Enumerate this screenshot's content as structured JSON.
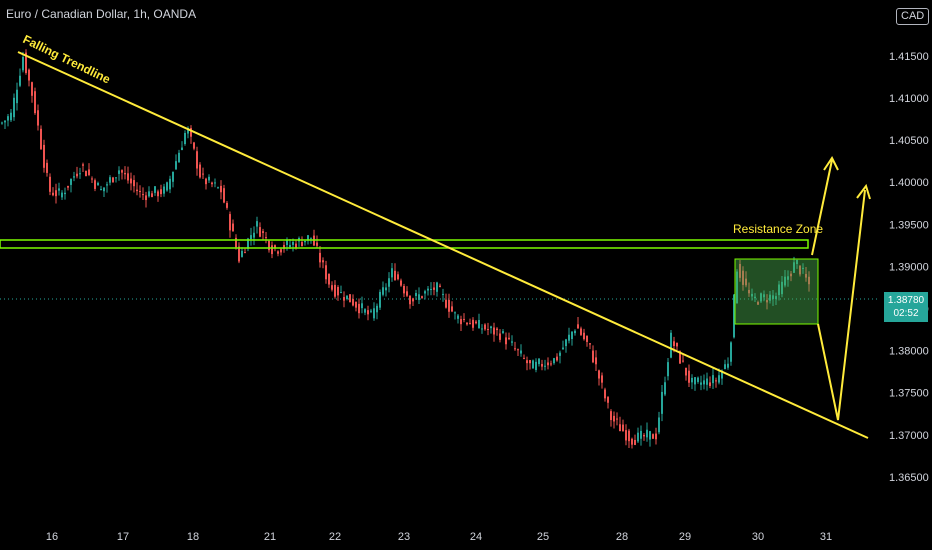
{
  "header": {
    "symbol_title": "Euro / Canadian Dollar, 1h, OANDA",
    "currency_button": "CAD"
  },
  "current_price": {
    "value": "1.38780",
    "countdown": "02:52",
    "color": "#26a69a"
  },
  "annotations": {
    "trendline_label": "Falling Trendline",
    "zone_label": "Resistance Zone",
    "trendline_color": "#ffeb3b",
    "zone_color": "#7cfc00"
  },
  "colors": {
    "up": "#26a69a",
    "down": "#ef5350",
    "axis_text": "#d1d4dc"
  },
  "chart_data": {
    "type": "candlestick",
    "title": "Euro / Canadian Dollar, 1h, OANDA",
    "y_ticks": [
      "1.41500",
      "1.41000",
      "1.40500",
      "1.40000",
      "1.39500",
      "1.39000",
      "1.38500",
      "1.38000",
      "1.37500",
      "1.37000",
      "1.36500"
    ],
    "x_ticks": [
      "16",
      "17",
      "18",
      "21",
      "22",
      "23",
      "24",
      "25",
      "28",
      "29",
      "30",
      "31"
    ],
    "ylim": [
      1.3625,
      1.4195
    ],
    "key_points": [
      {
        "label": "16",
        "close": 1.414
      },
      {
        "label": "17",
        "close": 1.399
      },
      {
        "label": "18",
        "close": 1.4065
      },
      {
        "label": "21",
        "close": 1.3925
      },
      {
        "label": "22",
        "close": 1.386
      },
      {
        "label": "23",
        "close": 1.3875
      },
      {
        "label": "24",
        "close": 1.383
      },
      {
        "label": "25",
        "close": 1.381
      },
      {
        "label": "28",
        "close": 1.37
      },
      {
        "label": "29",
        "close": 1.379
      },
      {
        "label": "30",
        "close": 1.389
      },
      {
        "label": "30.5",
        "close": 1.3878
      }
    ],
    "falling_trendline": [
      [
        16,
        1.416
      ],
      [
        31,
        1.372
      ]
    ],
    "resistance_zone": [
      1.3937,
      1.3945
    ],
    "projected_box": [
      1.3852,
      1.3924
    ],
    "projection_arrows": [
      "up to 1.4050",
      "down to 1.3740 then up to 1.4010"
    ]
  }
}
